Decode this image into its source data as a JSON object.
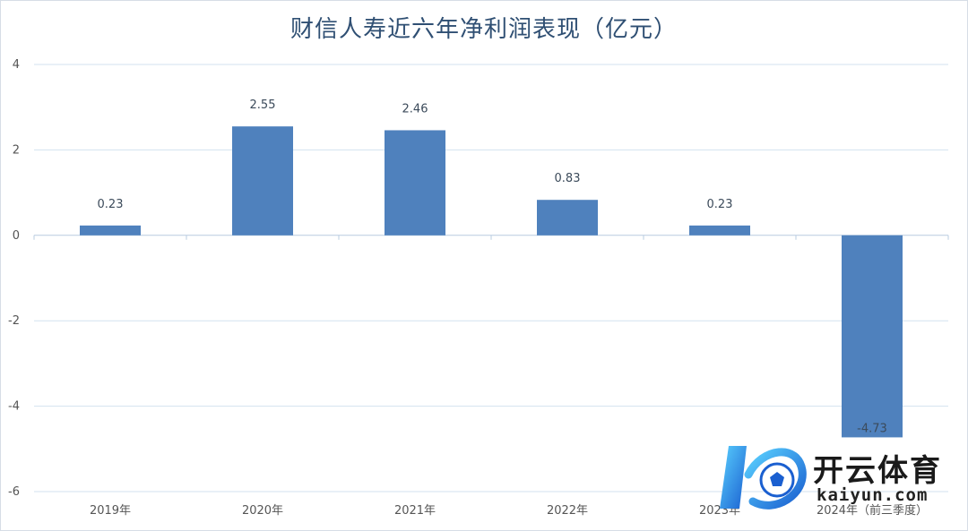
{
  "chart_data": {
    "type": "bar",
    "title": "财信人寿近六年净利润表现（亿元）",
    "categories": [
      "2019年",
      "2020年",
      "2021年",
      "2022年",
      "2023年",
      "2024年（前三季度）"
    ],
    "values": [
      0.23,
      2.55,
      2.46,
      0.83,
      0.23,
      -4.73
    ],
    "value_labels": [
      "0.23",
      "2.55",
      "2.46",
      "0.83",
      "0.23",
      "-4.73"
    ],
    "yticks": [
      "4",
      "2",
      "0",
      "-2",
      "-4",
      "-6"
    ],
    "ytick_values": [
      4,
      2,
      0,
      -2,
      -4,
      -6
    ],
    "ylim": [
      -6,
      4
    ],
    "grid": true,
    "bar_color": "#4f81bd",
    "legend": "none"
  },
  "watermark": {
    "brand_text": "开云体育",
    "url_text": "kaiyun.com"
  }
}
